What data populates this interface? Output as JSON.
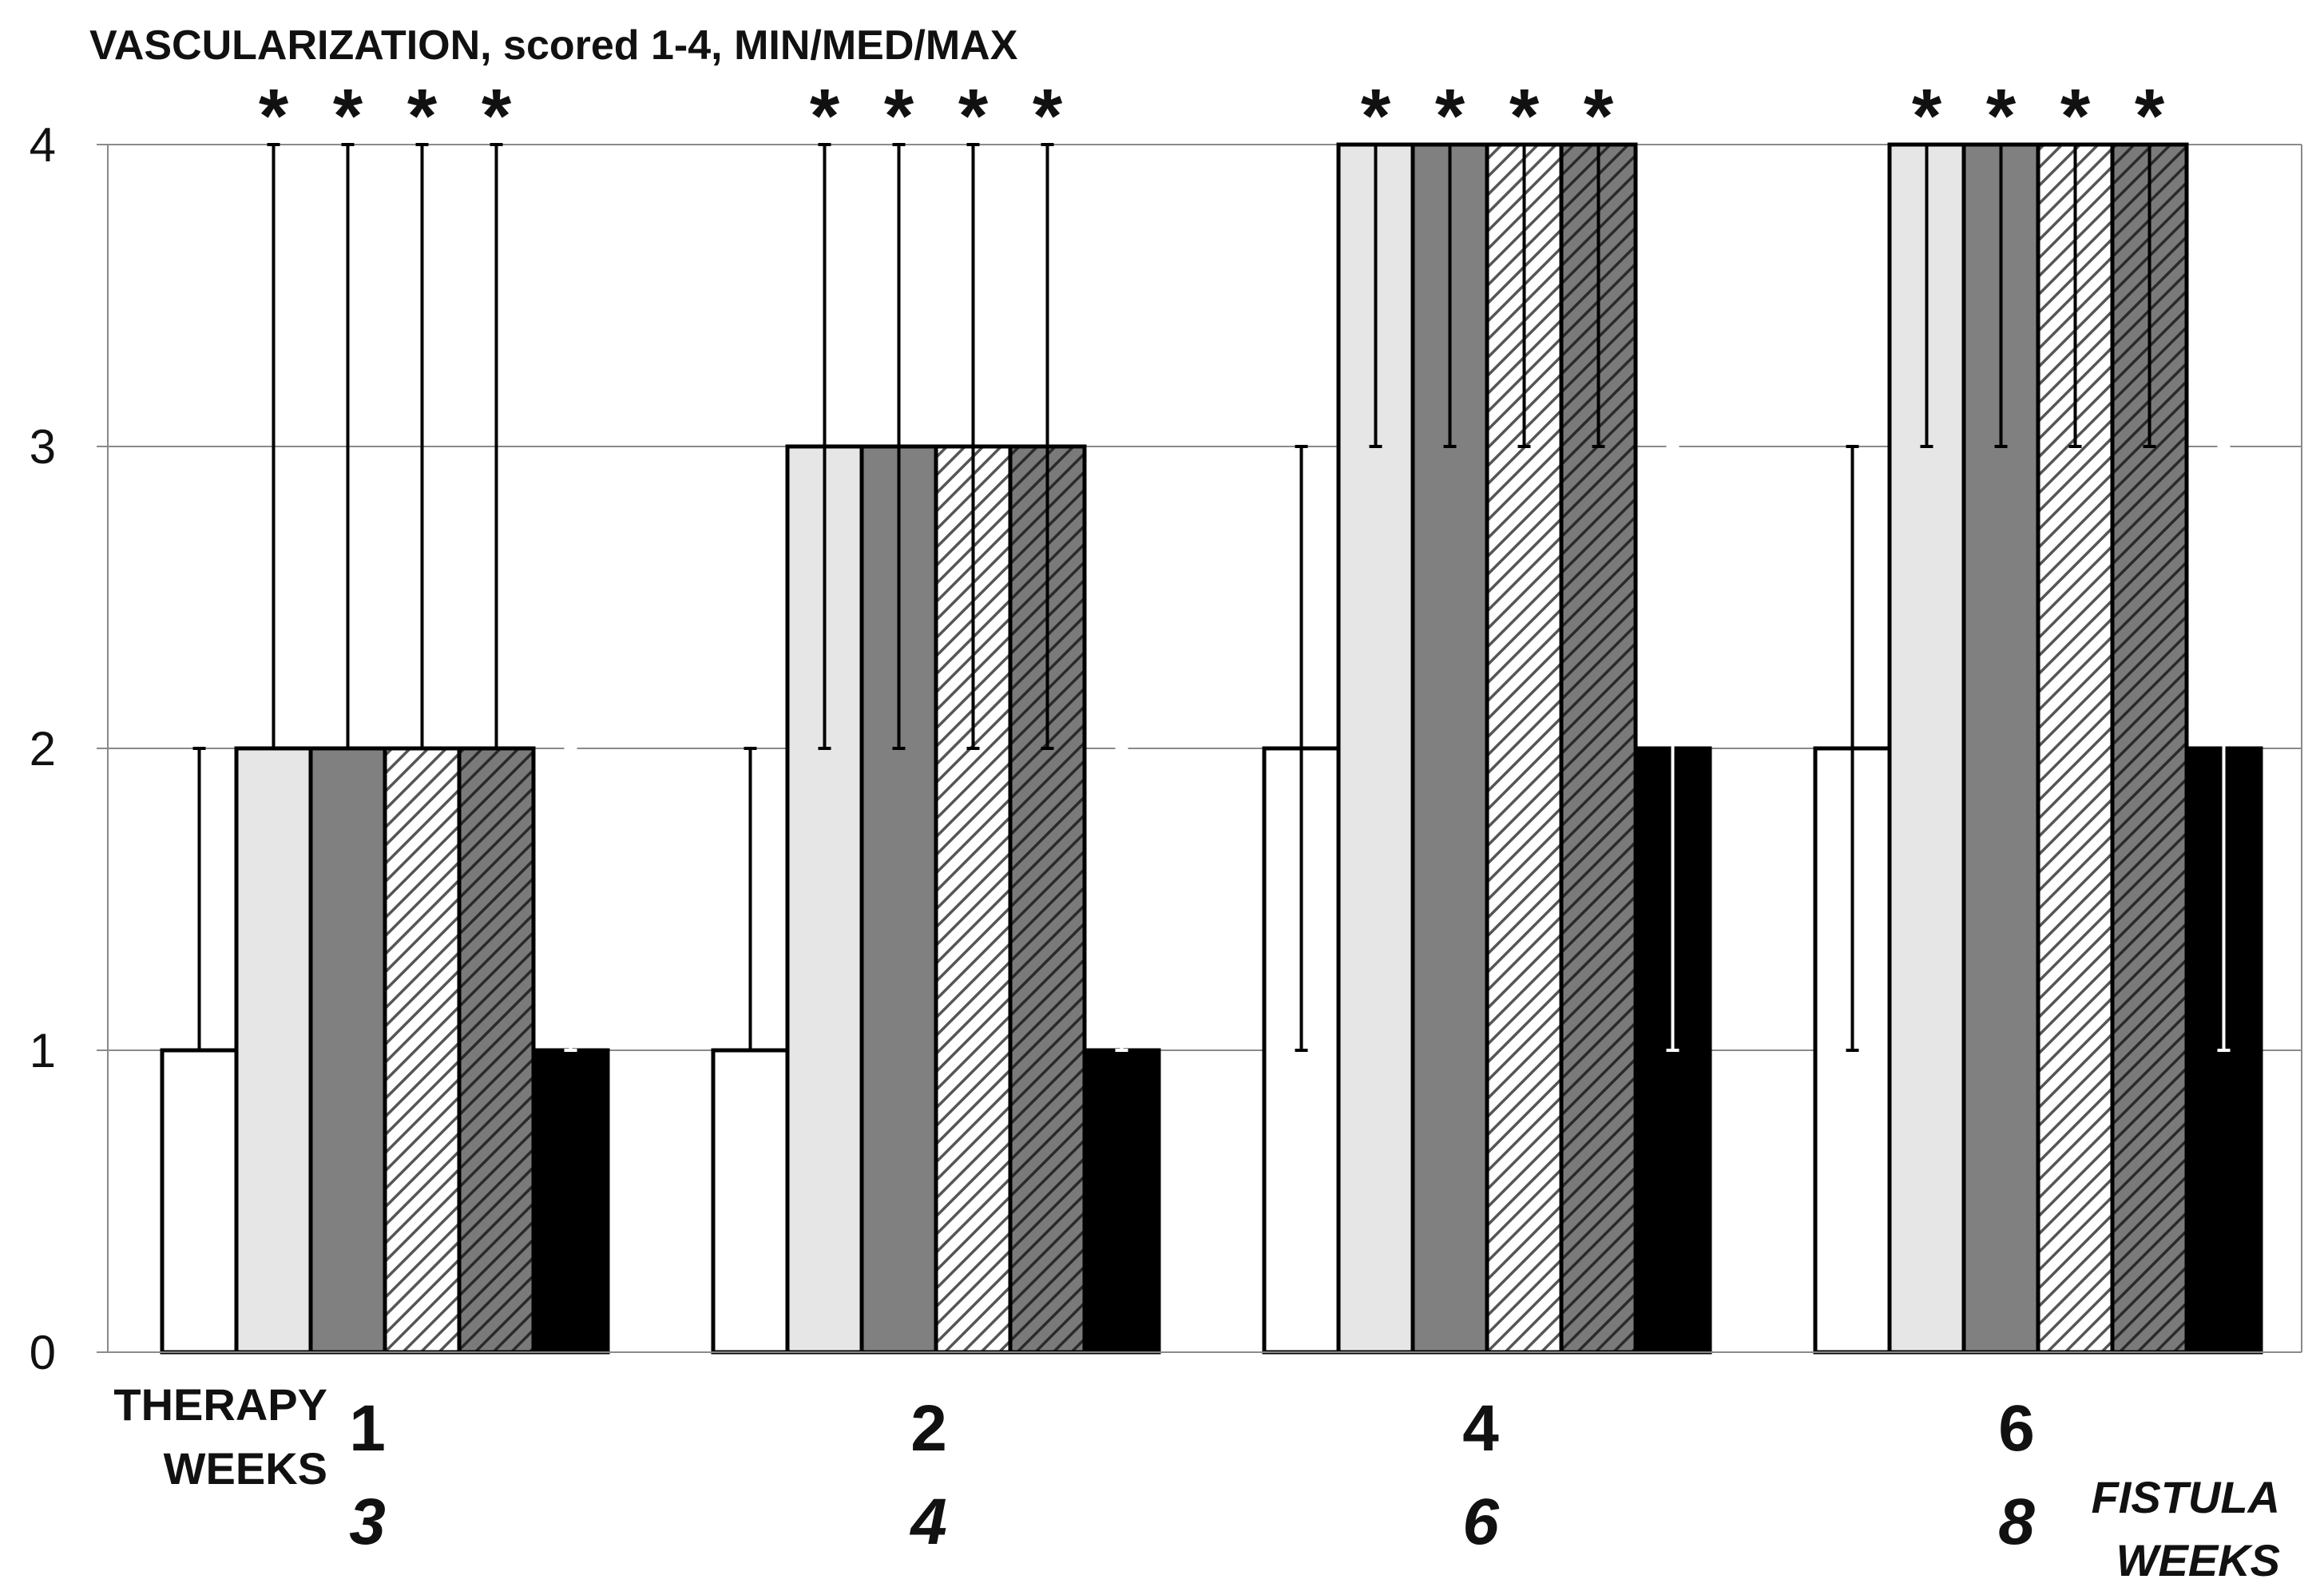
{
  "chart_data": {
    "type": "bar",
    "title": "VASCULARIZATION, scored 1-4, MIN/MED/MAX",
    "ylim": [
      0,
      4
    ],
    "yticks": [
      "0",
      "1",
      "2",
      "3",
      "4"
    ],
    "grid": true,
    "x_label_left": [
      "THERAPY",
      "WEEKS"
    ],
    "x_label_right": [
      "FISTULA",
      "WEEKS"
    ],
    "categories": [
      {
        "therapy": "1",
        "fistula": "3"
      },
      {
        "therapy": "2",
        "fistula": "4"
      },
      {
        "therapy": "4",
        "fistula": "6"
      },
      {
        "therapy": "6",
        "fistula": "8"
      }
    ],
    "significance_marker": "*",
    "series": [
      {
        "fill": "#ffffff",
        "pattern": "none",
        "errcolor": "#000000",
        "median": [
          1,
          1,
          2,
          2
        ],
        "min": [
          1,
          1,
          1,
          1
        ],
        "max": [
          2,
          2,
          3,
          3
        ],
        "significant": [
          false,
          false,
          false,
          false
        ]
      },
      {
        "fill": "#e6e6e6",
        "pattern": "none",
        "errcolor": "#000000",
        "median": [
          2,
          3,
          4,
          4
        ],
        "min": [
          2,
          2,
          3,
          3
        ],
        "max": [
          4,
          4,
          4,
          4
        ],
        "significant": [
          true,
          true,
          true,
          true
        ]
      },
      {
        "fill": "#808080",
        "pattern": "none",
        "errcolor": "#000000",
        "median": [
          2,
          3,
          4,
          4
        ],
        "min": [
          2,
          2,
          3,
          3
        ],
        "max": [
          4,
          4,
          4,
          4
        ],
        "significant": [
          true,
          true,
          true,
          true
        ]
      },
      {
        "fill": "#ffffff",
        "pattern": "hatch",
        "hatch_color": "#555555",
        "errcolor": "#000000",
        "median": [
          2,
          3,
          4,
          4
        ],
        "min": [
          2,
          2,
          3,
          3
        ],
        "max": [
          4,
          4,
          4,
          4
        ],
        "significant": [
          true,
          true,
          true,
          true
        ]
      },
      {
        "fill": "#7a7a7a",
        "pattern": "hatch",
        "hatch_color": "#2a2a2a",
        "errcolor": "#000000",
        "median": [
          2,
          3,
          4,
          4
        ],
        "min": [
          2,
          2,
          3,
          3
        ],
        "max": [
          4,
          4,
          4,
          4
        ],
        "significant": [
          true,
          true,
          true,
          true
        ]
      },
      {
        "fill": "#000000",
        "pattern": "none",
        "errcolor": "#ffffff",
        "median": [
          1,
          1,
          2,
          2
        ],
        "min": [
          1,
          1,
          1,
          1
        ],
        "max": [
          2,
          2,
          3,
          3
        ],
        "significant": [
          false,
          false,
          false,
          false
        ]
      }
    ]
  }
}
